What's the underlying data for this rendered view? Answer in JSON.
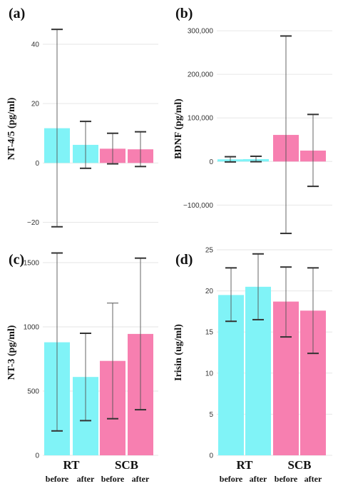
{
  "colors": {
    "rt": "#80f3f7",
    "scb": "#f77fb0",
    "errorbar": "#555555",
    "grid": "#e6e6e6"
  },
  "chart_data": [
    {
      "type": "bar",
      "panel": "(a)",
      "ylabel": "NT-4/5 (pg/ml)",
      "ylim": [
        -23,
        46
      ],
      "ticks": [
        -20,
        0,
        20,
        40
      ],
      "tick_labels": [
        "−20",
        "0",
        "20",
        "40"
      ],
      "grid": true,
      "groups": [],
      "sublabels": [],
      "series": [
        {
          "group": "RT",
          "condition": "before",
          "value": 11.7,
          "err_low": -21.5,
          "err_high": 45,
          "low_cap": "bold",
          "high_cap": "bold"
        },
        {
          "group": "RT",
          "condition": "after",
          "value": 6.1,
          "err_low": -1.8,
          "err_high": 14,
          "low_cap": "bold",
          "high_cap": "bold"
        },
        {
          "group": "SCB",
          "condition": "before",
          "value": 4.8,
          "err_low": -0.3,
          "err_high": 10,
          "low_cap": "bold",
          "high_cap": "bold"
        },
        {
          "group": "SCB",
          "condition": "after",
          "value": 4.6,
          "err_low": -1.2,
          "err_high": 10.5,
          "low_cap": "bold",
          "high_cap": "bold"
        }
      ]
    },
    {
      "type": "bar",
      "panel": "(b)",
      "ylabel": "BDNF (pg/ml)",
      "ylim": [
        -160000,
        310000
      ],
      "ticks": [
        -100000,
        0,
        100000,
        200000,
        300000
      ],
      "tick_labels": [
        "−100,000",
        "0",
        "100,000",
        "200,000",
        "300,000"
      ],
      "grid": true,
      "groups": [],
      "sublabels": [],
      "series": [
        {
          "group": "RT",
          "condition": "before",
          "value": 5000,
          "err_low": -1000,
          "err_high": 11000,
          "low_cap": "bold",
          "high_cap": "bold"
        },
        {
          "group": "RT",
          "condition": "after",
          "value": 5500,
          "err_low": -500,
          "err_high": 12000,
          "low_cap": "bold",
          "high_cap": "bold"
        },
        {
          "group": "SCB",
          "condition": "before",
          "value": 61000,
          "err_low": -165000,
          "err_high": 288000,
          "low_cap": "bold",
          "high_cap": "bold"
        },
        {
          "group": "SCB",
          "condition": "after",
          "value": 25000,
          "err_low": -57000,
          "err_high": 108000,
          "low_cap": "bold",
          "high_cap": "bold"
        }
      ]
    },
    {
      "type": "bar",
      "panel": "(c)",
      "ylabel": "NT-3 (pg/ml)",
      "ylim": [
        0,
        1600
      ],
      "ticks": [
        0,
        500,
        1000,
        1500
      ],
      "tick_labels": [
        "0",
        "500",
        "1000",
        "1500"
      ],
      "grid": true,
      "groups": [
        "RT",
        "SCB"
      ],
      "sublabels": [
        "before",
        "after",
        "before",
        "after"
      ],
      "series": [
        {
          "group": "RT",
          "condition": "before",
          "value": 880,
          "err_low": 190,
          "err_high": 1575,
          "low_cap": "bold",
          "high_cap": "bold"
        },
        {
          "group": "RT",
          "condition": "after",
          "value": 610,
          "err_low": 270,
          "err_high": 950,
          "low_cap": "bold",
          "high_cap": "bold"
        },
        {
          "group": "SCB",
          "condition": "before",
          "value": 735,
          "err_low": 285,
          "err_high": 1185,
          "low_cap": "bold",
          "high_cap": "thin"
        },
        {
          "group": "SCB",
          "condition": "after",
          "value": 945,
          "err_low": 355,
          "err_high": 1535,
          "low_cap": "bold",
          "high_cap": "bold"
        }
      ]
    },
    {
      "type": "bar",
      "panel": "(d)",
      "ylabel": "Irisin (ug/ml)",
      "ylim": [
        0,
        25
      ],
      "ticks": [
        0,
        5,
        10,
        15,
        20,
        25
      ],
      "tick_labels": [
        "0",
        "5",
        "10",
        "15",
        "20",
        "25"
      ],
      "grid": true,
      "groups": [
        "RT",
        "SCB"
      ],
      "sublabels": [
        "before",
        "after",
        "before",
        "after"
      ],
      "series": [
        {
          "group": "RT",
          "condition": "before",
          "value": 19.5,
          "err_low": 16.3,
          "err_high": 22.8,
          "low_cap": "bold",
          "high_cap": "bold"
        },
        {
          "group": "RT",
          "condition": "after",
          "value": 20.5,
          "err_low": 16.5,
          "err_high": 24.5,
          "low_cap": "bold",
          "high_cap": "bold"
        },
        {
          "group": "SCB",
          "condition": "before",
          "value": 18.7,
          "err_low": 14.4,
          "err_high": 22.9,
          "low_cap": "bold",
          "high_cap": "bold"
        },
        {
          "group": "SCB",
          "condition": "after",
          "value": 17.6,
          "err_low": 12.4,
          "err_high": 22.8,
          "low_cap": "bold",
          "high_cap": "bold"
        }
      ]
    }
  ]
}
